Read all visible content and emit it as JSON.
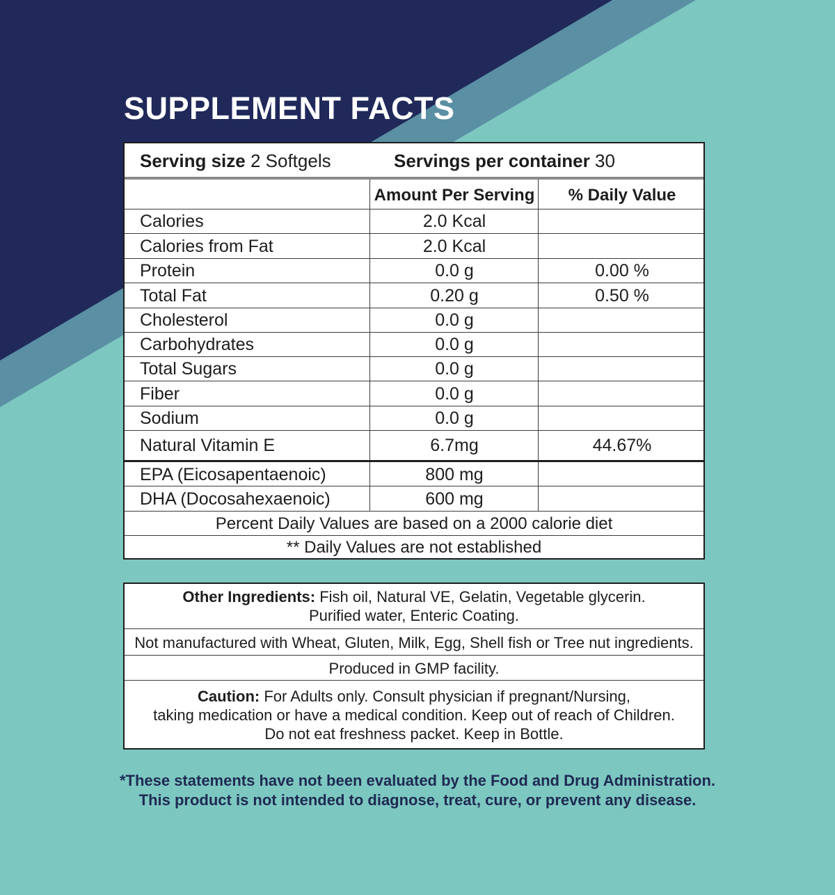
{
  "header": {
    "title": "SUPPLEMENT FACTS"
  },
  "serving": {
    "size_label": "Serving size",
    "size_value": "2 Softgels",
    "per_container_label": "Servings per container",
    "per_container_value": "30"
  },
  "table": {
    "columns": [
      "",
      "Amount Per Serving",
      "% Daily Value"
    ],
    "rows": [
      {
        "name": "Calories",
        "amount": "2.0 Kcal",
        "dv": ""
      },
      {
        "name": "Calories from Fat",
        "amount": "2.0 Kcal",
        "dv": ""
      },
      {
        "name": "Protein",
        "amount": "0.0 g",
        "dv": "0.00 %"
      },
      {
        "name": "Total Fat",
        "amount": "0.20 g",
        "dv": "0.50 %"
      },
      {
        "name": "Cholesterol",
        "amount": "0.0 g",
        "dv": ""
      },
      {
        "name": "Carbohydrates",
        "amount": "0.0 g",
        "dv": ""
      },
      {
        "name": "Total Sugars",
        "amount": "0.0 g",
        "dv": ""
      },
      {
        "name": "Fiber",
        "amount": "0.0 g",
        "dv": ""
      },
      {
        "name": "Sodium",
        "amount": "0.0 g",
        "dv": ""
      },
      {
        "name": "Natural Vitamin E",
        "amount": "6.7mg",
        "dv": "44.67%"
      },
      {
        "name": "EPA (Eicosapentaenoic)",
        "amount": "800 mg",
        "dv": ""
      },
      {
        "name": "DHA (Docosahexaenoic)",
        "amount": "600 mg",
        "dv": ""
      }
    ],
    "footnote_1": "Percent Daily Values are based on a 2000 calorie diet",
    "footnote_2": "** Daily Values are not established"
  },
  "info": {
    "ingredients_label": "Other Ingredients:",
    "ingredients_line1": " Fish oil, Natural VE, Gelatin, Vegetable glycerin.",
    "ingredients_line2": "Purified water, Enteric Coating.",
    "allergen": "Not manufactured with Wheat, Gluten, Milk, Egg, Shell fish or Tree nut ingredients.",
    "facility": "Produced in GMP facility.",
    "caution_label": "Caution:",
    "caution_line1": " For Adults only. Consult physician if pregnant/Nursing,",
    "caution_line2": "taking medication or have a medical condition. Keep out of reach of Children.",
    "caution_line3": "Do not eat freshness packet. Keep in Bottle."
  },
  "disclaimer": {
    "line1": "*These statements have not been evaluated by the Food and Drug Administration.",
    "line2": "This product is not intended to diagnose, treat, cure, or prevent any disease."
  },
  "colors": {
    "navy": "#20295a",
    "steel": "#5a8fa4",
    "teal": "#7dc7c1",
    "disclaimer_text": "#1e2a52"
  }
}
